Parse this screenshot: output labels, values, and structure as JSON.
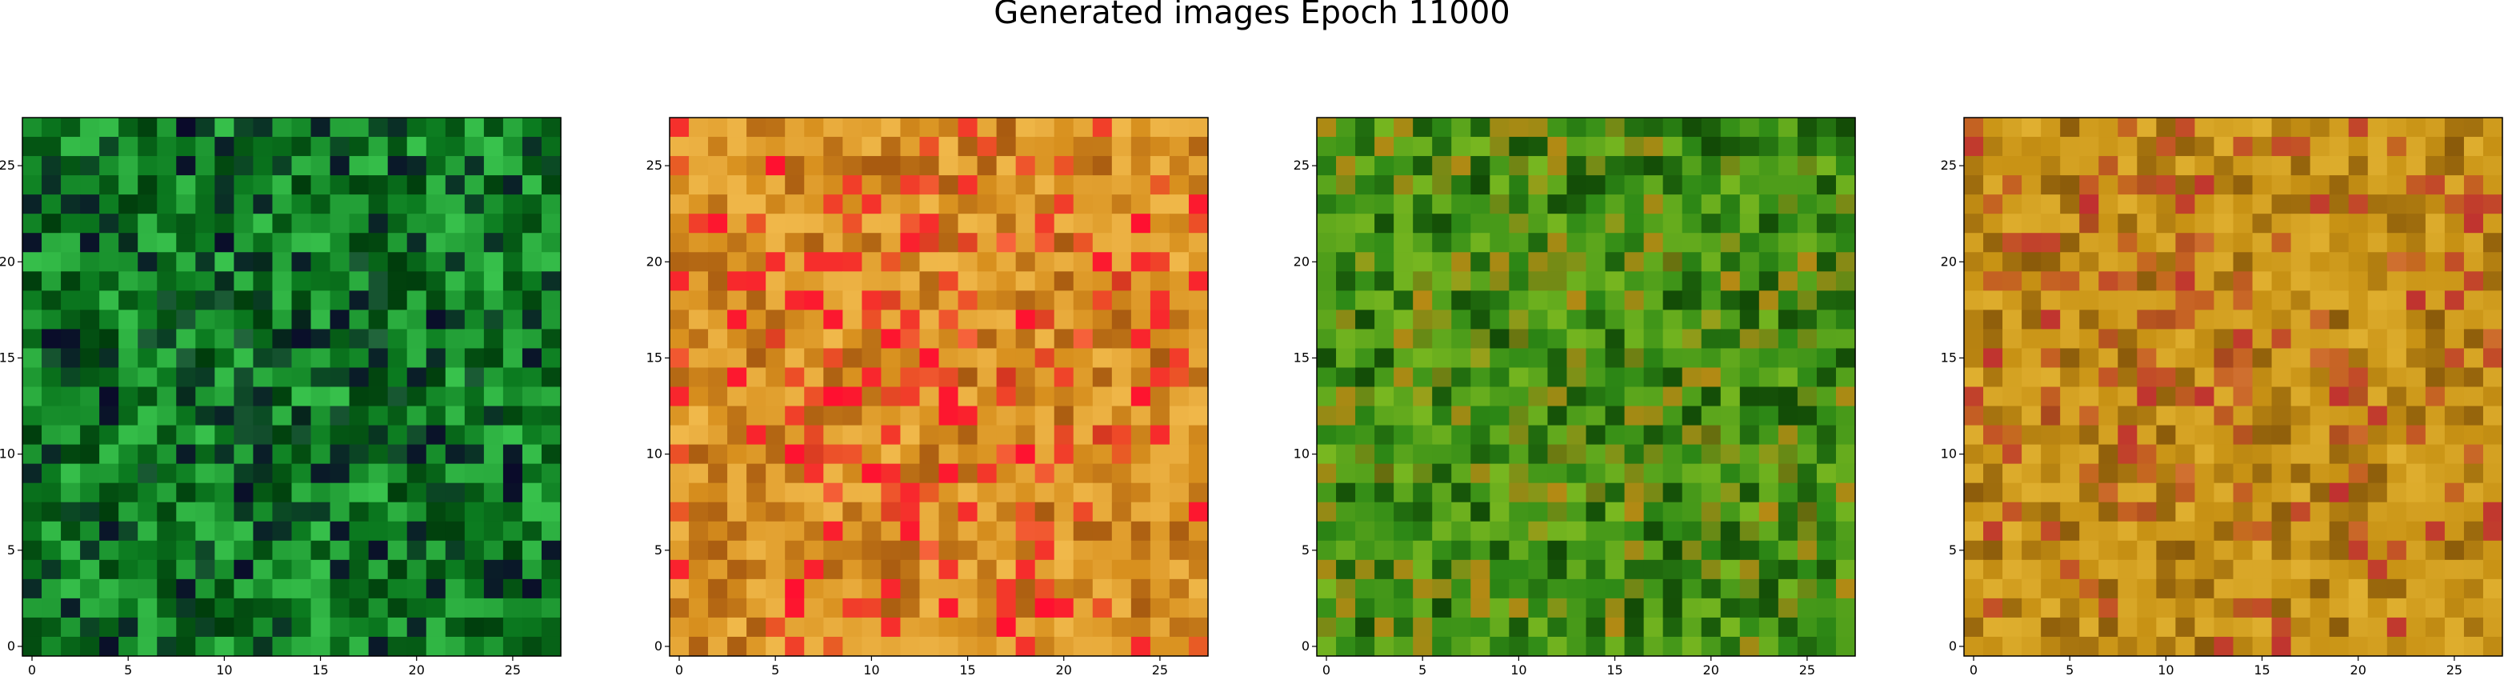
{
  "figure": {
    "title": "Generated images Epoch 11000"
  },
  "chart_data": [
    {
      "type": "heatmap",
      "dominant_palette": "green",
      "xlim": [
        -0.5,
        27.5
      ],
      "ylim": [
        27.5,
        -0.5
      ],
      "x_ticks": [
        0,
        5,
        10,
        15,
        20,
        25
      ],
      "y_ticks": [
        0,
        5,
        10,
        15,
        20,
        25
      ],
      "grid": false,
      "colors": {
        "base": "#0b7a1f",
        "light": "#38c24c",
        "dark": "#003d0c",
        "accent": "#0a0a2a"
      }
    },
    {
      "type": "heatmap",
      "dominant_palette": "orange-red",
      "xlim": [
        -0.5,
        27.5
      ],
      "ylim": [
        27.5,
        -0.5
      ],
      "x_ticks": [
        0,
        5,
        10,
        15,
        20,
        25
      ],
      "y_ticks": [
        0,
        5,
        10,
        15,
        20,
        25
      ],
      "grid": false,
      "colors": {
        "base": "#d8901e",
        "light": "#f0b84a",
        "dark": "#a85a10",
        "accent": "#ff1030"
      }
    },
    {
      "type": "heatmap",
      "dominant_palette": "olive-green",
      "xlim": [
        -0.5,
        27.5
      ],
      "ylim": [
        27.5,
        -0.5
      ],
      "x_ticks": [
        0,
        5,
        10,
        15,
        20,
        25
      ],
      "y_ticks": [
        0,
        5,
        10,
        15,
        20,
        25
      ],
      "grid": false,
      "colors": {
        "base": "#2e8a16",
        "light": "#7ab820",
        "dark": "#124a06",
        "accent": "#b88a14"
      }
    },
    {
      "type": "heatmap",
      "dominant_palette": "amber",
      "xlim": [
        -0.5,
        27.5
      ],
      "ylim": [
        27.5,
        -0.5
      ],
      "x_ticks": [
        0,
        5,
        10,
        15,
        20,
        25
      ],
      "y_ticks": [
        0,
        5,
        10,
        15,
        20,
        25
      ],
      "grid": false,
      "colors": {
        "base": "#c89214",
        "light": "#e0b030",
        "dark": "#8a5a0a",
        "accent": "#c03030"
      }
    }
  ]
}
